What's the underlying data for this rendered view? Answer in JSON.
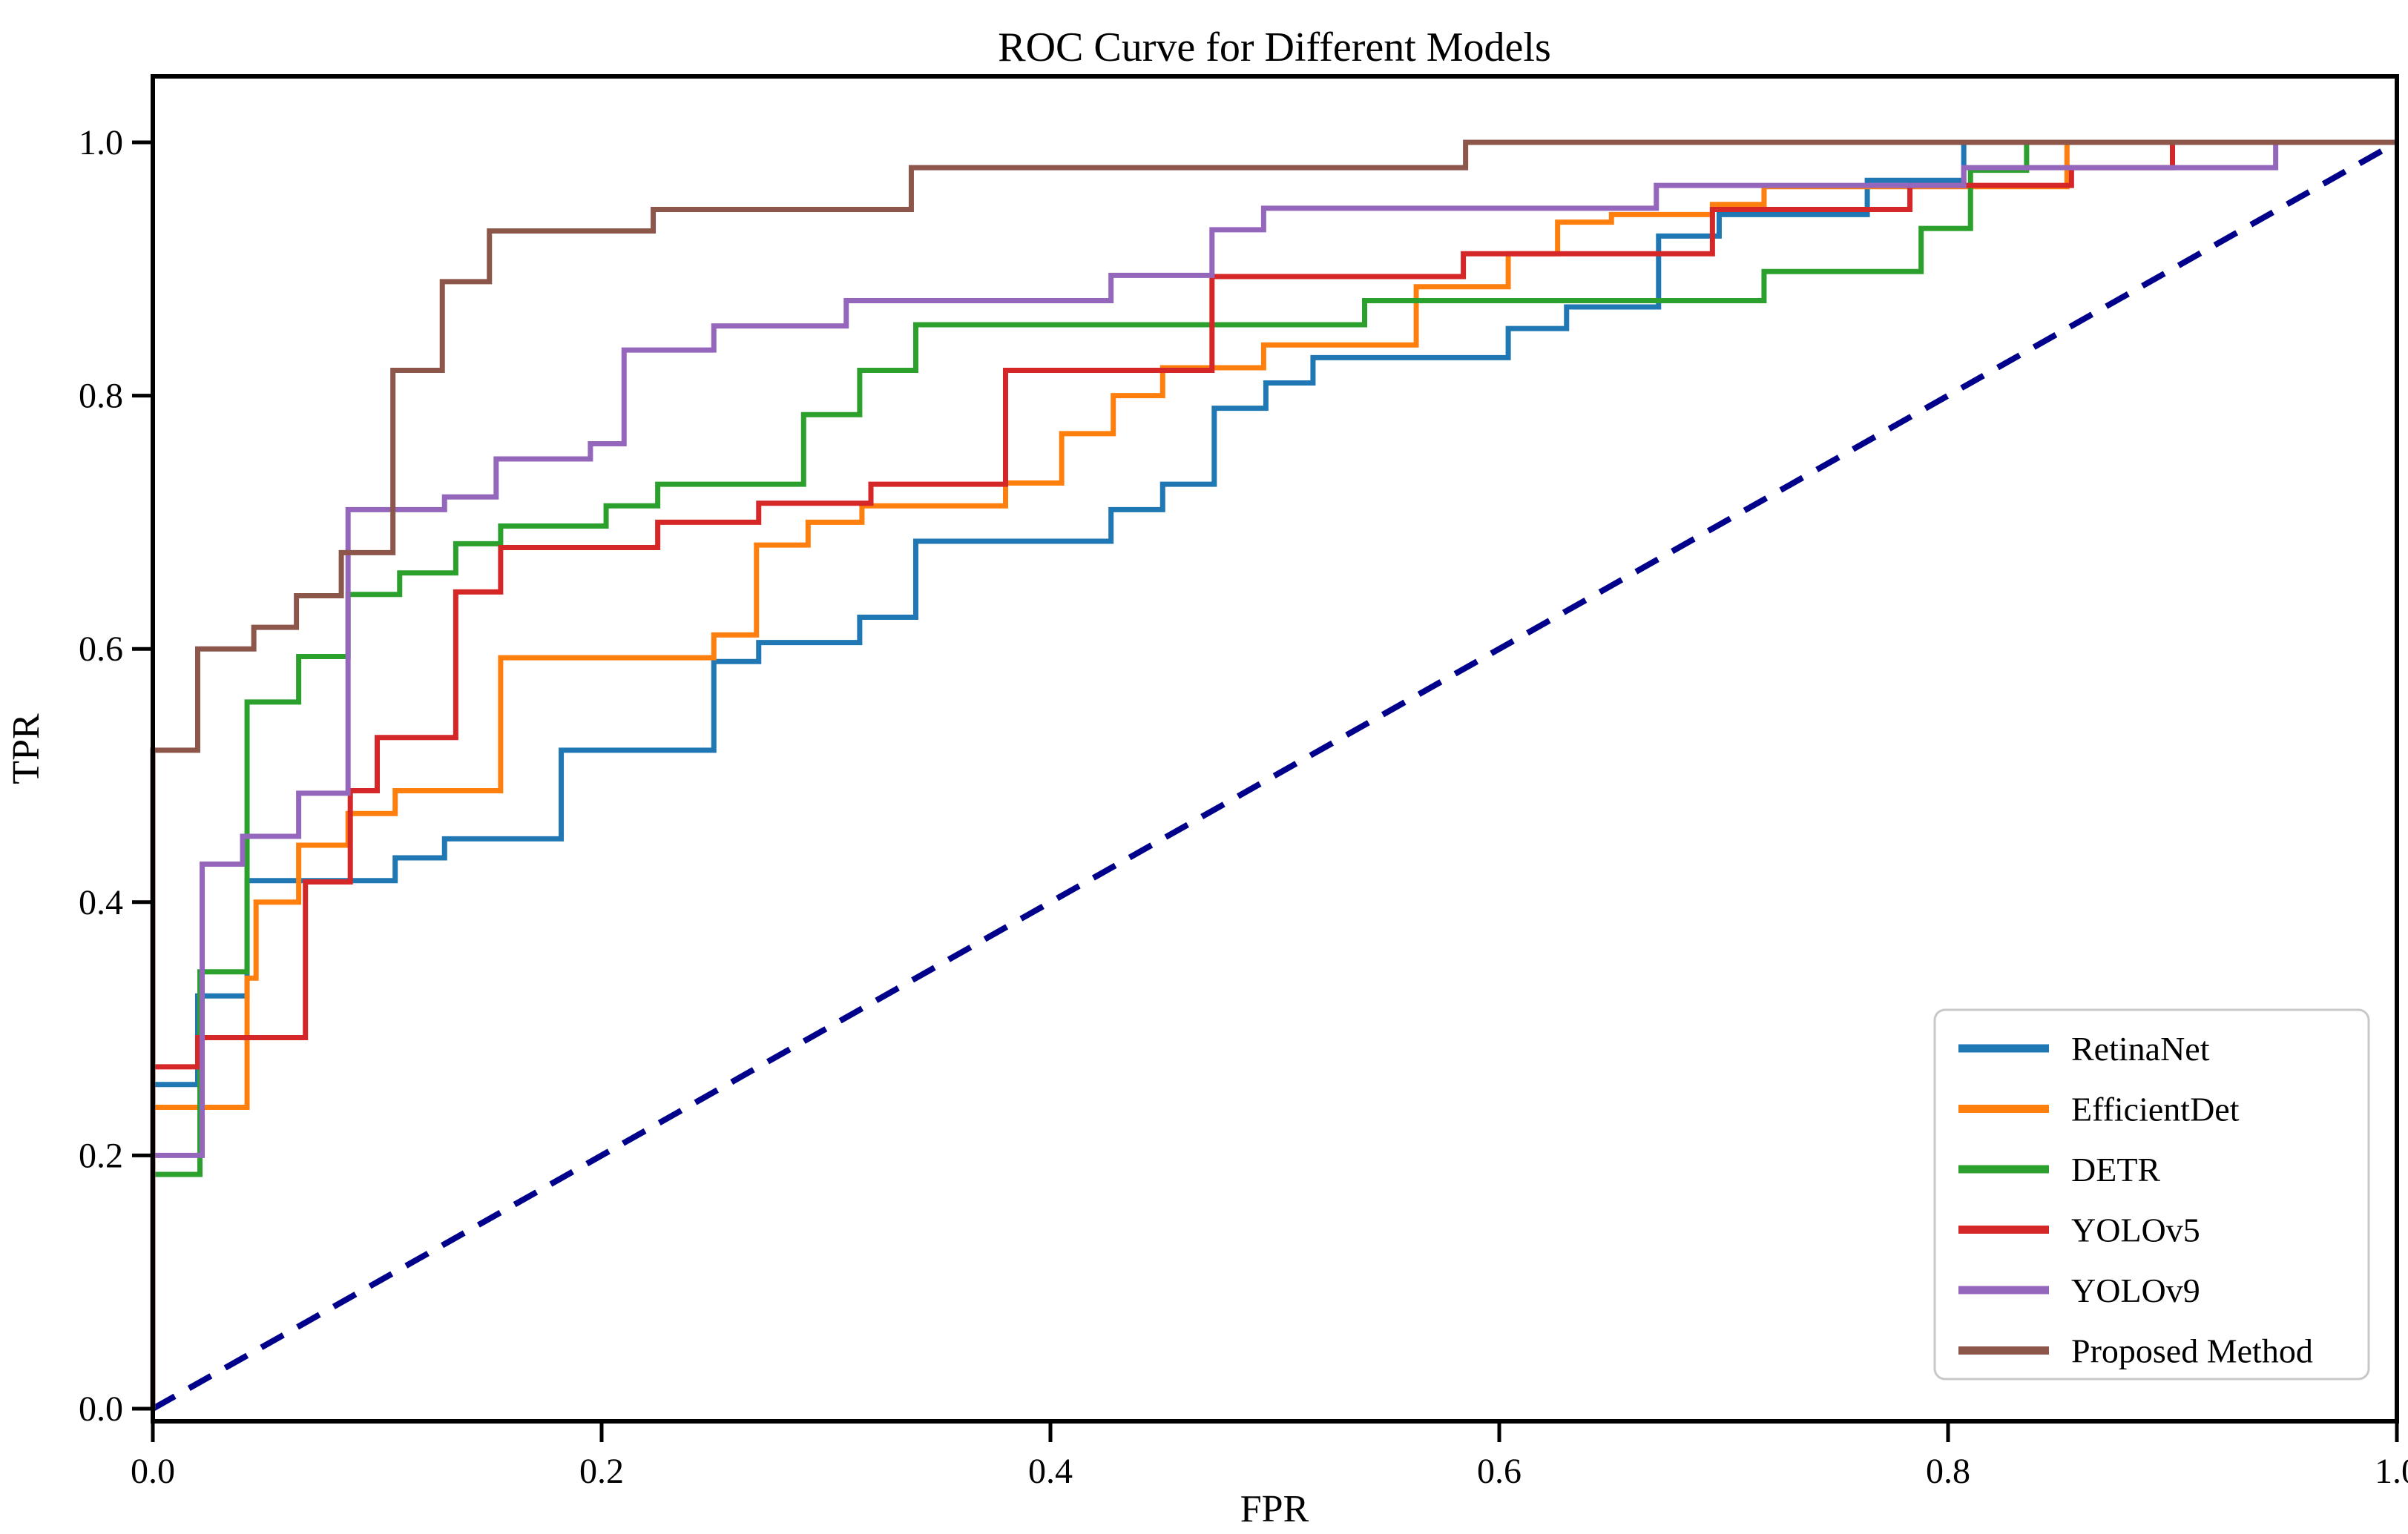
{
  "chart_data": {
    "type": "line",
    "subtype": "roc-step-curves",
    "title": "ROC Curve for Different Models",
    "xlabel": "FPR",
    "ylabel": "TPR",
    "xlim": [
      0.0,
      1.0
    ],
    "ylim": [
      0.0,
      1.0
    ],
    "xticks": [
      "0.0",
      "0.2",
      "0.4",
      "0.6",
      "0.8",
      "1.0"
    ],
    "yticks": [
      "0.0",
      "0.2",
      "0.4",
      "0.6",
      "0.8",
      "1.0"
    ],
    "grid": false,
    "background_color": "#ffffff",
    "spine_color": "#000000",
    "legend": {
      "position": "lower right",
      "border_color": "#c8c8c8"
    },
    "reference_line": {
      "name": "chance-diagonal",
      "from": [
        0,
        0
      ],
      "to": [
        1,
        1
      ],
      "color": "#00008b",
      "style": "dashed"
    },
    "series": [
      {
        "name": "RetinaNet",
        "color": "#1f77b4",
        "points": [
          [
            0,
            0.256
          ],
          [
            0.02,
            0.326
          ],
          [
            0.042,
            0.417
          ],
          [
            0.108,
            0.435
          ],
          [
            0.13,
            0.45
          ],
          [
            0.182,
            0.52
          ],
          [
            0.25,
            0.59
          ],
          [
            0.27,
            0.605
          ],
          [
            0.315,
            0.625
          ],
          [
            0.34,
            0.685
          ],
          [
            0.427,
            0.71
          ],
          [
            0.45,
            0.73
          ],
          [
            0.473,
            0.79
          ],
          [
            0.496,
            0.81
          ],
          [
            0.517,
            0.83
          ],
          [
            0.604,
            0.853
          ],
          [
            0.63,
            0.87
          ],
          [
            0.671,
            0.926
          ],
          [
            0.698,
            0.943
          ],
          [
            0.764,
            0.97
          ],
          [
            0.807,
            1.0
          ]
        ]
      },
      {
        "name": "EfficientDet",
        "color": "#ff7f0e",
        "points": [
          [
            0,
            0.238
          ],
          [
            0.042,
            0.34
          ],
          [
            0.046,
            0.4
          ],
          [
            0.065,
            0.445
          ],
          [
            0.087,
            0.47
          ],
          [
            0.108,
            0.488
          ],
          [
            0.155,
            0.593
          ],
          [
            0.25,
            0.611
          ],
          [
            0.269,
            0.682
          ],
          [
            0.292,
            0.7
          ],
          [
            0.316,
            0.713
          ],
          [
            0.38,
            0.731
          ],
          [
            0.405,
            0.77
          ],
          [
            0.428,
            0.8
          ],
          [
            0.45,
            0.822
          ],
          [
            0.495,
            0.84
          ],
          [
            0.563,
            0.886
          ],
          [
            0.604,
            0.912
          ],
          [
            0.626,
            0.937
          ],
          [
            0.65,
            0.943
          ],
          [
            0.695,
            0.951
          ],
          [
            0.718,
            0.965
          ],
          [
            0.853,
            1.0
          ]
        ]
      },
      {
        "name": "DETR",
        "color": "#2ca02c",
        "points": [
          [
            0,
            0.185
          ],
          [
            0.021,
            0.345
          ],
          [
            0.042,
            0.558
          ],
          [
            0.065,
            0.594
          ],
          [
            0.087,
            0.643
          ],
          [
            0.11,
            0.66
          ],
          [
            0.135,
            0.683
          ],
          [
            0.155,
            0.697
          ],
          [
            0.202,
            0.713
          ],
          [
            0.225,
            0.73
          ],
          [
            0.29,
            0.785
          ],
          [
            0.315,
            0.82
          ],
          [
            0.34,
            0.856
          ],
          [
            0.54,
            0.875
          ],
          [
            0.718,
            0.898
          ],
          [
            0.788,
            0.932
          ],
          [
            0.81,
            0.978
          ],
          [
            0.835,
            1.0
          ]
        ]
      },
      {
        "name": "YOLOv5",
        "color": "#d62728",
        "points": [
          [
            0,
            0.27
          ],
          [
            0.02,
            0.293
          ],
          [
            0.068,
            0.416
          ],
          [
            0.088,
            0.488
          ],
          [
            0.1,
            0.53
          ],
          [
            0.135,
            0.645
          ],
          [
            0.155,
            0.68
          ],
          [
            0.225,
            0.7
          ],
          [
            0.27,
            0.715
          ],
          [
            0.32,
            0.73
          ],
          [
            0.38,
            0.82
          ],
          [
            0.472,
            0.894
          ],
          [
            0.584,
            0.912
          ],
          [
            0.695,
            0.947
          ],
          [
            0.783,
            0.966
          ],
          [
            0.855,
            0.98
          ],
          [
            0.9,
            1.0
          ]
        ]
      },
      {
        "name": "YOLOv9",
        "color": "#9467bd",
        "points": [
          [
            0,
            0.2
          ],
          [
            0.022,
            0.43
          ],
          [
            0.04,
            0.452
          ],
          [
            0.065,
            0.486
          ],
          [
            0.087,
            0.71
          ],
          [
            0.13,
            0.72
          ],
          [
            0.153,
            0.75
          ],
          [
            0.195,
            0.762
          ],
          [
            0.21,
            0.836
          ],
          [
            0.25,
            0.855
          ],
          [
            0.309,
            0.875
          ],
          [
            0.427,
            0.895
          ],
          [
            0.472,
            0.931
          ],
          [
            0.495,
            0.948
          ],
          [
            0.67,
            0.966
          ],
          [
            0.807,
            0.98
          ],
          [
            0.946,
            1.0
          ]
        ]
      },
      {
        "name": "Proposed Method",
        "color": "#8c564b",
        "points": [
          [
            0,
            0.52
          ],
          [
            0.02,
            0.6
          ],
          [
            0.045,
            0.617
          ],
          [
            0.064,
            0.642
          ],
          [
            0.084,
            0.676
          ],
          [
            0.107,
            0.82
          ],
          [
            0.129,
            0.89
          ],
          [
            0.15,
            0.93
          ],
          [
            0.223,
            0.947
          ],
          [
            0.338,
            0.98
          ],
          [
            0.585,
            1.0
          ]
        ]
      }
    ]
  }
}
